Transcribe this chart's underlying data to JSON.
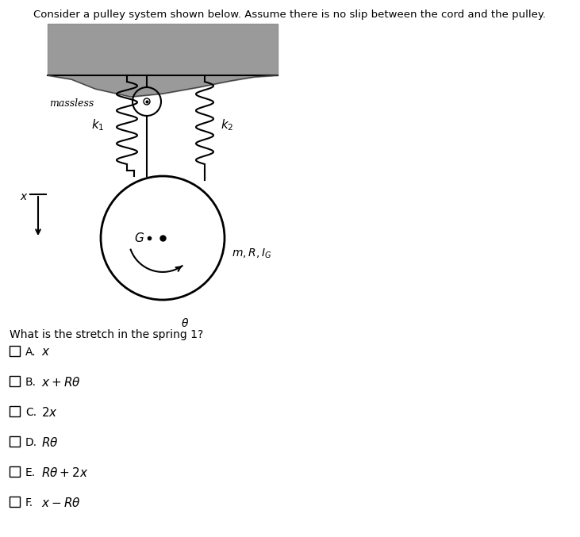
{
  "title_text": "Consider a pulley system shown below. Assume there is no slip between the cord and the pulley.",
  "question_text": "What is the stretch in the spring 1?",
  "choices": [
    [
      "A.",
      "x"
    ],
    [
      "B.",
      "x + R\\theta"
    ],
    [
      "C.",
      "2x"
    ],
    [
      "D.",
      "R\\theta"
    ],
    [
      "E.",
      "R\\theta + 2x"
    ],
    [
      "F.",
      "x - R\\theta"
    ]
  ],
  "bg_color": "#ffffff",
  "text_color": "#000000",
  "fig_w": 7.31,
  "fig_h": 6.77,
  "dpi": 100
}
